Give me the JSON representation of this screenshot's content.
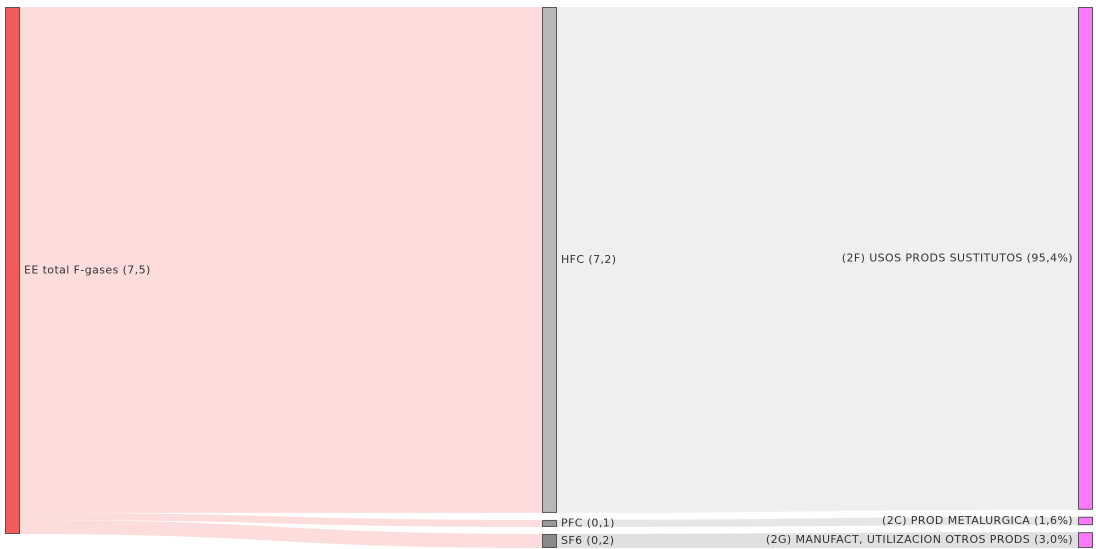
{
  "chart_data": {
    "type": "sankey",
    "columns": [
      [
        {
          "value": 7.5,
          "label": "EE total F-gases (7,5)",
          "color": "#f25b5b"
        }
      ],
      [
        {
          "value": 7.2,
          "label": "HFC (7,2)",
          "color": "#b8b8b8"
        },
        {
          "value": 0.1,
          "label": "PFC (0,1)",
          "color": "#9a9a9a"
        },
        {
          "value": 0.2,
          "label": "SF6 (0,2)",
          "color": "#8a8a8a"
        }
      ],
      [
        {
          "value": 95.4,
          "label": "(2F) USOS PRODS SUSTITUTOS (95,4%)",
          "color": "#ff77ff"
        },
        {
          "value": 1.6,
          "label": "(2C) PROD METALURGICA (1,6%)",
          "color": "#ff77ff"
        },
        {
          "value": 3.0,
          "label": "(2G) MANUFACT, UTILIZACION OTROS PRODS (3,0%)",
          "color": "#ff77ff"
        }
      ]
    ],
    "links": [
      {
        "from": [
          0,
          0
        ],
        "to": [
          1,
          0
        ],
        "color": "#fddcdc"
      },
      {
        "from": [
          0,
          0
        ],
        "to": [
          1,
          1
        ],
        "color": "#fddcdc"
      },
      {
        "from": [
          0,
          0
        ],
        "to": [
          1,
          2
        ],
        "color": "#fddcdc"
      },
      {
        "from": [
          1,
          0
        ],
        "to": [
          2,
          0
        ],
        "color": "#efefef"
      },
      {
        "from": [
          1,
          1
        ],
        "to": [
          2,
          1
        ],
        "color": "#e6e6e6"
      },
      {
        "from": [
          1,
          2
        ],
        "to": [
          2,
          2
        ],
        "color": "#e0e0e0"
      }
    ]
  }
}
